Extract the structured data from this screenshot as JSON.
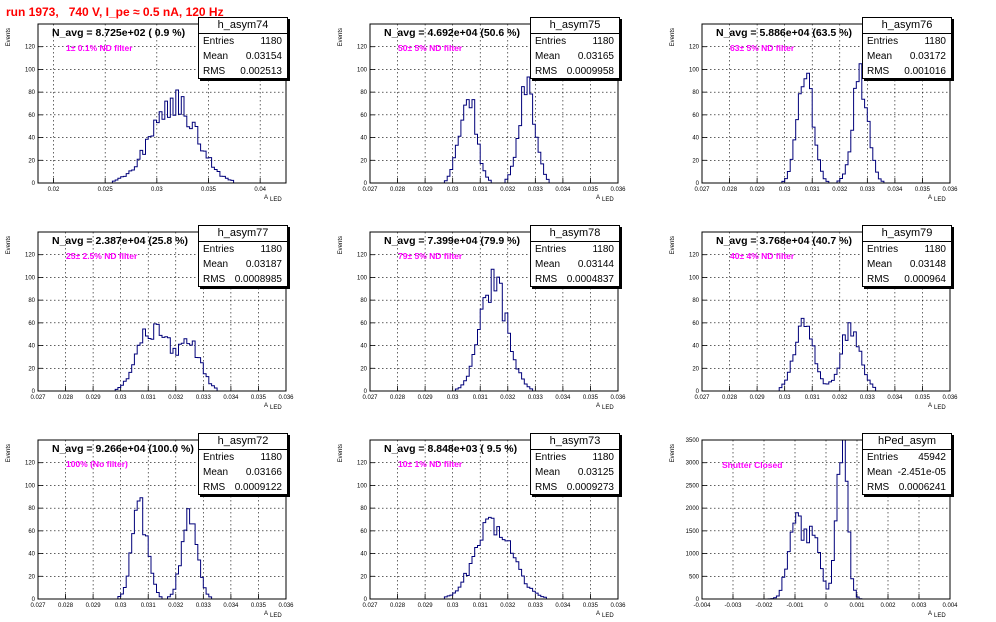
{
  "run_title": "run 1973,   740 V, I_pe ≈ 0.5 nA, 120 Hz",
  "panels": [
    {
      "name": "h_asym74",
      "navg": "N_avg = 8.725e+02 ( 0.9 %)",
      "filter": "1± 0.1% ND filter",
      "entries": "1180",
      "mean": "0.03154",
      "rms": "0.002513"
    },
    {
      "name": "h_asym75",
      "navg": "N_avg = 4.692e+04 (50.6 %)",
      "filter": "50± 5% ND filter",
      "entries": "1180",
      "mean": "0.03165",
      "rms": "0.0009958"
    },
    {
      "name": "h_asym76",
      "navg": "N_avg = 5.886e+04 (63.5 %)",
      "filter": "63± 5% ND filter",
      "entries": "1180",
      "mean": "0.03172",
      "rms": "0.001016"
    },
    {
      "name": "h_asym77",
      "navg": "N_avg = 2.387e+04 (25.8 %)",
      "filter": "25± 2.5% ND filter",
      "entries": "1180",
      "mean": "0.03187",
      "rms": "0.0008985"
    },
    {
      "name": "h_asym78",
      "navg": "N_avg = 7.399e+04 (79.9 %)",
      "filter": "79± 5% ND filter",
      "entries": "1180",
      "mean": "0.03144",
      "rms": "0.0004837"
    },
    {
      "name": "h_asym79",
      "navg": "N_avg = 3.768e+04 (40.7 %)",
      "filter": "40± 4% ND filter",
      "entries": "1180",
      "mean": "0.03148",
      "rms": "0.000964"
    },
    {
      "name": "h_asym72",
      "navg": "N_avg = 9.266e+04 (100.0 %)",
      "filter": "100% (No filter)",
      "entries": "1180",
      "mean": "0.03166",
      "rms": "0.0009122"
    },
    {
      "name": "h_asym73",
      "navg": "N_avg = 8.848e+03 ( 9.5 %)",
      "filter": "10± 1% ND filter",
      "entries": "1180",
      "mean": "0.03125",
      "rms": "0.0009273"
    },
    {
      "name": "hPed_asym",
      "navg": "",
      "filter": "Shutter Closed",
      "entries": "45942",
      "mean": "-2.451e-05",
      "rms": "0.0006241"
    }
  ],
  "stat_labels": {
    "entries": "Entries",
    "mean": "Mean",
    "rms": "RMS"
  },
  "chart_data": [
    {
      "type": "histogram",
      "title": "h_asym74",
      "xlabel": "A_LED",
      "ylabel": "Events",
      "xlim": [
        0.0185,
        0.0425
      ],
      "ylim": [
        0,
        140
      ],
      "x_ticks": [
        "0.02",
        "0.025",
        "0.03",
        "0.035",
        "0.04"
      ],
      "y_ticks": [
        "0",
        "20",
        "40",
        "60",
        "80",
        "100",
        "120"
      ],
      "peaks": [
        [
          0.0307,
          32,
          0.0016
        ],
        [
          0.0328,
          44,
          0.0018
        ],
        [
          0.0298,
          12,
          0.002
        ]
      ]
    },
    {
      "type": "histogram",
      "title": "h_asym75",
      "xlabel": "A_LED",
      "ylabel": "Events",
      "xlim": [
        0.027,
        0.036
      ],
      "ylim": [
        0,
        140
      ],
      "x_ticks": [
        "0.027",
        "0.028",
        "0.029",
        "0.03",
        "0.031",
        "0.032",
        "0.033",
        "0.034",
        "0.035",
        "0.036"
      ],
      "y_ticks": [
        "0",
        "20",
        "40",
        "60",
        "80",
        "100",
        "120"
      ],
      "peaks": [
        [
          0.03055,
          80,
          0.0003
        ],
        [
          0.0327,
          82,
          0.0003
        ]
      ]
    },
    {
      "type": "histogram",
      "title": "h_asym76",
      "xlabel": "A_LED",
      "ylabel": "Events",
      "xlim": [
        0.027,
        0.036
      ],
      "ylim": [
        0,
        140
      ],
      "x_ticks": [
        "0.027",
        "0.028",
        "0.029",
        "0.03",
        "0.031",
        "0.032",
        "0.033",
        "0.034",
        "0.035",
        "0.036"
      ],
      "y_ticks": [
        "0",
        "20",
        "40",
        "60",
        "80",
        "100",
        "120"
      ],
      "peaks": [
        [
          0.03075,
          95,
          0.00028
        ],
        [
          0.03275,
          92,
          0.00028
        ]
      ]
    },
    {
      "type": "histogram",
      "title": "h_asym77",
      "xlabel": "A_LED",
      "ylabel": "Events",
      "xlim": [
        0.027,
        0.036
      ],
      "ylim": [
        0,
        140
      ],
      "x_ticks": [
        "0.027",
        "0.028",
        "0.029",
        "0.03",
        "0.031",
        "0.032",
        "0.033",
        "0.034",
        "0.035",
        "0.036"
      ],
      "y_ticks": [
        "0",
        "20",
        "40",
        "60",
        "80",
        "100",
        "120"
      ],
      "peaks": [
        [
          0.0309,
          48,
          0.0004
        ],
        [
          0.0316,
          34,
          0.0003
        ],
        [
          0.0325,
          42,
          0.0004
        ]
      ]
    },
    {
      "type": "histogram",
      "title": "h_asym78",
      "xlabel": "A_LED",
      "ylabel": "Events",
      "xlim": [
        0.027,
        0.036
      ],
      "ylim": [
        0,
        140
      ],
      "x_ticks": [
        "0.027",
        "0.028",
        "0.029",
        "0.03",
        "0.031",
        "0.032",
        "0.033",
        "0.034",
        "0.035",
        "0.036"
      ],
      "y_ticks": [
        "0",
        "20",
        "40",
        "60",
        "80",
        "100",
        "120"
      ],
      "peaks": [
        [
          0.0315,
          98,
          0.00048
        ]
      ]
    },
    {
      "type": "histogram",
      "title": "h_asym79",
      "xlabel": "A_LED",
      "ylabel": "Events",
      "xlim": [
        0.027,
        0.036
      ],
      "ylim": [
        0,
        140
      ],
      "x_ticks": [
        "0.027",
        "0.028",
        "0.029",
        "0.03",
        "0.031",
        "0.032",
        "0.033",
        "0.034",
        "0.035",
        "0.036"
      ],
      "y_ticks": [
        "0",
        "20",
        "40",
        "60",
        "80",
        "100",
        "120"
      ],
      "peaks": [
        [
          0.0307,
          58,
          0.00035
        ],
        [
          0.0324,
          55,
          0.00035
        ]
      ]
    },
    {
      "type": "histogram",
      "title": "h_asym72",
      "xlabel": "A_LED",
      "ylabel": "Events",
      "xlim": [
        0.027,
        0.036
      ],
      "ylim": [
        0,
        140
      ],
      "x_ticks": [
        "0.027",
        "0.028",
        "0.029",
        "0.03",
        "0.031",
        "0.032",
        "0.033",
        "0.034",
        "0.035",
        "0.036"
      ],
      "y_ticks": [
        "0",
        "20",
        "40",
        "60",
        "80",
        "100",
        "120"
      ],
      "peaks": [
        [
          0.0307,
          78,
          0.00028
        ],
        [
          0.0325,
          70,
          0.00028
        ]
      ]
    },
    {
      "type": "histogram",
      "title": "h_asym73",
      "xlabel": "A_LED",
      "ylabel": "Events",
      "xlim": [
        0.027,
        0.036
      ],
      "ylim": [
        0,
        140
      ],
      "x_ticks": [
        "0.027",
        "0.028",
        "0.029",
        "0.03",
        "0.031",
        "0.032",
        "0.033",
        "0.034",
        "0.035",
        "0.036"
      ],
      "y_ticks": [
        "0",
        "20",
        "40",
        "60",
        "80",
        "100",
        "120"
      ],
      "peaks": [
        [
          0.0313,
          50,
          0.0006
        ],
        [
          0.03195,
          22,
          0.0006
        ]
      ]
    },
    {
      "type": "histogram",
      "title": "hPed_asym",
      "xlabel": "A_LED",
      "ylabel": "Events",
      "xlim": [
        -0.004,
        0.004
      ],
      "ylim": [
        0,
        3500
      ],
      "x_ticks": [
        "-0.004",
        "-0.003",
        "-0.002",
        "-0.001",
        "0",
        "0.001",
        "0.002",
        "0.003",
        "0.004"
      ],
      "y_ticks": [
        "0",
        "500",
        "1000",
        "1500",
        "2000",
        "2500",
        "3000",
        "3500"
      ],
      "peaks": [
        [
          -0.001,
          1850,
          0.00022
        ],
        [
          -0.0004,
          1500,
          0.00022
        ],
        [
          0.00052,
          3300,
          0.00017
        ]
      ]
    }
  ]
}
